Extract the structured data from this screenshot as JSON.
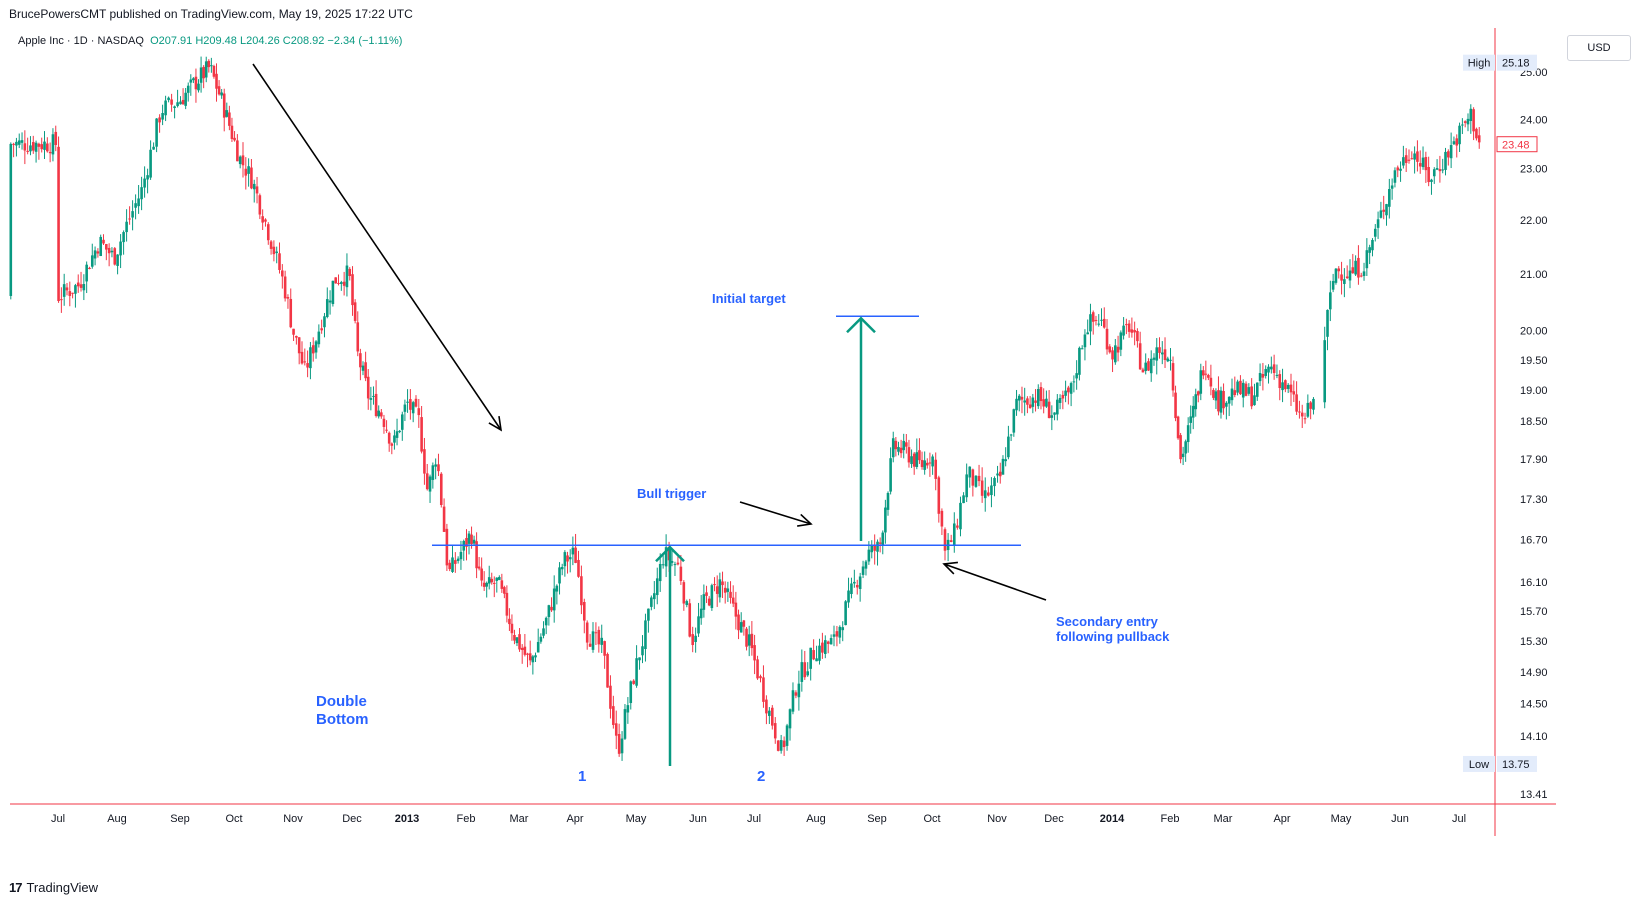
{
  "header": {
    "published": "BrucePowersCMT published on TradingView.com, May 19, 2025 17:22 UTC",
    "symbol": "Apple Inc · 1D · NASDAQ",
    "ohlc": "O207.91  H209.48  L204.26  C208.92  −2.34 (−1.11%)"
  },
  "currency_button": "USD",
  "footer": {
    "brand": "TradingView",
    "logo": "17"
  },
  "colors": {
    "up": "#089981",
    "down": "#f23645",
    "wick": "#333333",
    "trendline": "#2962ff",
    "arrow_teal": "#089981",
    "annotation_text": "#2962ff",
    "axis_red": "#f23645",
    "arrow_black": "#000000"
  },
  "chart_data": {
    "type": "candlestick",
    "title": "Apple Inc · 1D · NASDAQ",
    "x_tick_labels": [
      "Jul",
      "Aug",
      "Sep",
      "Oct",
      "Nov",
      "Dec",
      "2013",
      "Feb",
      "Mar",
      "Apr",
      "May",
      "Jun",
      "Jul",
      "Aug",
      "Sep",
      "Oct",
      "Nov",
      "Dec",
      "2014",
      "Feb",
      "Mar",
      "Apr",
      "May",
      "Jun",
      "Jul"
    ],
    "y_tick_labels": [
      "25.00",
      "24.00",
      "23.00",
      "22.00",
      "21.00",
      "20.00",
      "19.50",
      "19.00",
      "18.50",
      "17.90",
      "17.30",
      "16.70",
      "16.10",
      "15.70",
      "15.30",
      "14.90",
      "14.50",
      "14.10",
      "13.41"
    ],
    "y_ticks": [
      25.0,
      24.0,
      23.0,
      22.0,
      21.0,
      20.0,
      19.5,
      19.0,
      18.5,
      17.9,
      17.3,
      16.7,
      16.1,
      15.7,
      15.3,
      14.9,
      14.5,
      14.1,
      13.41
    ],
    "y_scale": "log",
    "y_range": [
      13.3,
      25.5
    ],
    "price_labels": {
      "high_label": "High",
      "high": "25.18",
      "last": "23.48",
      "low_label": "Low",
      "low": "13.75"
    },
    "series_closes": [
      {
        "t": 0,
        "c": 20.6
      },
      {
        "t": 0.35,
        "c": 20.8
      },
      {
        "t": 0.7,
        "c": 21.6
      },
      {
        "t": 0.95,
        "c": 21.3
      },
      {
        "t": 1.15,
        "c": 21.9
      },
      {
        "t": 1.4,
        "c": 22.6
      },
      {
        "t": 1.7,
        "c": 24.2
      },
      {
        "t": 2.0,
        "c": 24.4
      },
      {
        "t": 2.3,
        "c": 24.8
      },
      {
        "t": 2.55,
        "c": 25.1
      },
      {
        "t": 2.8,
        "c": 24.3
      },
      {
        "t": 3.1,
        "c": 23.2
      },
      {
        "t": 3.3,
        "c": 22.8
      },
      {
        "t": 3.55,
        "c": 21.9
      },
      {
        "t": 3.85,
        "c": 20.8
      },
      {
        "t": 4.0,
        "c": 20.0
      },
      {
        "t": 4.2,
        "c": 19.3
      },
      {
        "t": 4.4,
        "c": 19.9
      },
      {
        "t": 4.7,
        "c": 20.9
      },
      {
        "t": 4.95,
        "c": 21.0
      },
      {
        "t": 5.1,
        "c": 19.6
      },
      {
        "t": 5.3,
        "c": 18.9
      },
      {
        "t": 5.55,
        "c": 18.6
      },
      {
        "t": 5.75,
        "c": 18.1
      },
      {
        "t": 6.0,
        "c": 18.8
      },
      {
        "t": 6.2,
        "c": 18.5
      },
      {
        "t": 6.35,
        "c": 17.4
      },
      {
        "t": 6.5,
        "c": 18.0
      },
      {
        "t": 6.7,
        "c": 16.2
      },
      {
        "t": 6.9,
        "c": 16.5
      },
      {
        "t": 7.1,
        "c": 16.8
      },
      {
        "t": 7.3,
        "c": 16.0
      },
      {
        "t": 7.6,
        "c": 16.1
      },
      {
        "t": 7.9,
        "c": 15.4
      },
      {
        "t": 8.2,
        "c": 15.0
      },
      {
        "t": 8.5,
        "c": 15.6
      },
      {
        "t": 8.8,
        "c": 16.4
      },
      {
        "t": 9.0,
        "c": 16.5
      },
      {
        "t": 9.2,
        "c": 15.4
      },
      {
        "t": 9.45,
        "c": 15.2
      },
      {
        "t": 9.7,
        "c": 13.9
      },
      {
        "t": 9.95,
        "c": 14.8
      },
      {
        "t": 10.2,
        "c": 15.6
      },
      {
        "t": 10.45,
        "c": 16.5
      },
      {
        "t": 10.7,
        "c": 16.3
      },
      {
        "t": 10.9,
        "c": 15.3
      },
      {
        "t": 11.1,
        "c": 15.8
      },
      {
        "t": 11.4,
        "c": 16.1
      },
      {
        "t": 11.7,
        "c": 15.6
      },
      {
        "t": 11.95,
        "c": 15.2
      },
      {
        "t": 12.2,
        "c": 14.5
      },
      {
        "t": 12.45,
        "c": 13.9
      },
      {
        "t": 12.7,
        "c": 14.8
      },
      {
        "t": 13.0,
        "c": 15.2
      },
      {
        "t": 13.3,
        "c": 15.3
      },
      {
        "t": 13.6,
        "c": 16.0
      },
      {
        "t": 13.85,
        "c": 16.5
      },
      {
        "t": 14.05,
        "c": 16.6
      },
      {
        "t": 14.3,
        "c": 18.1
      },
      {
        "t": 14.55,
        "c": 18.0
      },
      {
        "t": 14.8,
        "c": 17.8
      },
      {
        "t": 15.0,
        "c": 18.0
      },
      {
        "t": 15.2,
        "c": 16.5
      },
      {
        "t": 15.35,
        "c": 16.8
      },
      {
        "t": 15.55,
        "c": 17.7
      },
      {
        "t": 15.8,
        "c": 17.3
      },
      {
        "t": 16.05,
        "c": 17.6
      },
      {
        "t": 16.35,
        "c": 18.8
      },
      {
        "t": 16.7,
        "c": 18.9
      },
      {
        "t": 17.0,
        "c": 18.6
      },
      {
        "t": 17.3,
        "c": 19.0
      },
      {
        "t": 17.55,
        "c": 20.1
      },
      {
        "t": 17.8,
        "c": 20.2
      },
      {
        "t": 18.0,
        "c": 19.6
      },
      {
        "t": 18.3,
        "c": 20.1
      },
      {
        "t": 18.55,
        "c": 19.3
      },
      {
        "t": 18.8,
        "c": 19.7
      },
      {
        "t": 19.0,
        "c": 19.6
      },
      {
        "t": 19.2,
        "c": 17.9
      },
      {
        "t": 19.4,
        "c": 18.5
      },
      {
        "t": 19.65,
        "c": 19.5
      },
      {
        "t": 19.9,
        "c": 18.8
      },
      {
        "t": 20.2,
        "c": 19.0
      },
      {
        "t": 20.5,
        "c": 18.9
      },
      {
        "t": 20.8,
        "c": 19.4
      },
      {
        "t": 21.1,
        "c": 19.0
      },
      {
        "t": 21.35,
        "c": 18.5
      },
      {
        "t": 21.6,
        "c": 18.9
      },
      {
        "t": 21.75,
        "c": 20.1
      },
      {
        "t": 21.9,
        "c": 21.1
      },
      {
        "t": 22.15,
        "c": 21.0
      },
      {
        "t": 22.4,
        "c": 21.2
      },
      {
        "t": 22.65,
        "c": 22.0
      },
      {
        "t": 22.9,
        "c": 22.9
      },
      {
        "t": 23.2,
        "c": 23.4
      },
      {
        "t": 23.5,
        "c": 22.8
      },
      {
        "t": 23.75,
        "c": 23.2
      },
      {
        "t": 24.0,
        "c": 23.7
      },
      {
        "t": 24.2,
        "c": 24.1
      },
      {
        "t": 24.35,
        "c": 23.5
      }
    ],
    "series_note_ref": "month index t: 0=Jul 2012 ... 24=Jul 2014",
    "lines": [
      {
        "name": "bull_trigger_level",
        "y": 16.62
      }
    ],
    "targets": [
      {
        "name": "initial_target_level",
        "y": 20.25
      }
    ],
    "annotations": [
      {
        "text": "Initial target"
      },
      {
        "text": "Bull trigger"
      },
      {
        "text": "Double"
      },
      {
        "text": "Bottom"
      },
      {
        "text": "1"
      },
      {
        "text": "2"
      },
      {
        "text": "Secondary entry"
      },
      {
        "text": "following pullback"
      }
    ]
  }
}
